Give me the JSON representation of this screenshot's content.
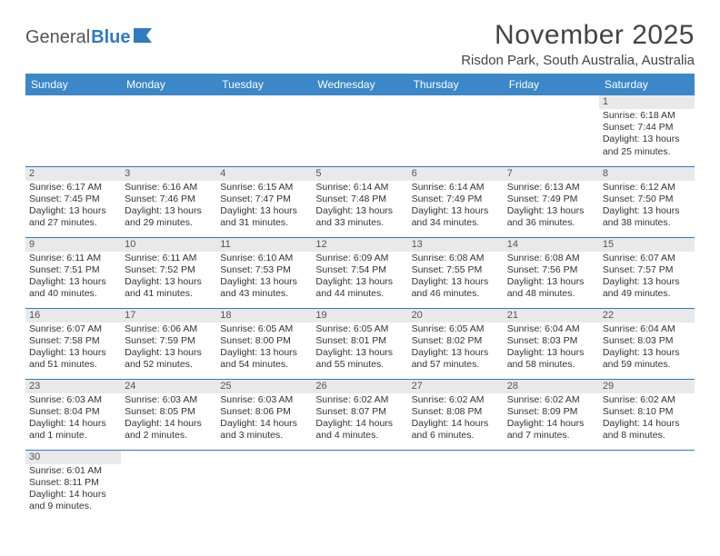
{
  "brand": {
    "part1": "General",
    "part2": "Blue"
  },
  "title": "November 2025",
  "location": "Risdon Park, South Australia, Australia",
  "colors": {
    "header_bg": "#3b87c8",
    "border": "#2f7ac0",
    "daybg": "#e9e9e9"
  },
  "dayHeaders": [
    "Sunday",
    "Monday",
    "Tuesday",
    "Wednesday",
    "Thursday",
    "Friday",
    "Saturday"
  ],
  "firstWeekday": 6,
  "days": [
    {
      "n": 1,
      "sunrise": "6:18 AM",
      "sunset": "7:44 PM",
      "daylight": "13 hours and 25 minutes."
    },
    {
      "n": 2,
      "sunrise": "6:17 AM",
      "sunset": "7:45 PM",
      "daylight": "13 hours and 27 minutes."
    },
    {
      "n": 3,
      "sunrise": "6:16 AM",
      "sunset": "7:46 PM",
      "daylight": "13 hours and 29 minutes."
    },
    {
      "n": 4,
      "sunrise": "6:15 AM",
      "sunset": "7:47 PM",
      "daylight": "13 hours and 31 minutes."
    },
    {
      "n": 5,
      "sunrise": "6:14 AM",
      "sunset": "7:48 PM",
      "daylight": "13 hours and 33 minutes."
    },
    {
      "n": 6,
      "sunrise": "6:14 AM",
      "sunset": "7:49 PM",
      "daylight": "13 hours and 34 minutes."
    },
    {
      "n": 7,
      "sunrise": "6:13 AM",
      "sunset": "7:49 PM",
      "daylight": "13 hours and 36 minutes."
    },
    {
      "n": 8,
      "sunrise": "6:12 AM",
      "sunset": "7:50 PM",
      "daylight": "13 hours and 38 minutes."
    },
    {
      "n": 9,
      "sunrise": "6:11 AM",
      "sunset": "7:51 PM",
      "daylight": "13 hours and 40 minutes."
    },
    {
      "n": 10,
      "sunrise": "6:11 AM",
      "sunset": "7:52 PM",
      "daylight": "13 hours and 41 minutes."
    },
    {
      "n": 11,
      "sunrise": "6:10 AM",
      "sunset": "7:53 PM",
      "daylight": "13 hours and 43 minutes."
    },
    {
      "n": 12,
      "sunrise": "6:09 AM",
      "sunset": "7:54 PM",
      "daylight": "13 hours and 44 minutes."
    },
    {
      "n": 13,
      "sunrise": "6:08 AM",
      "sunset": "7:55 PM",
      "daylight": "13 hours and 46 minutes."
    },
    {
      "n": 14,
      "sunrise": "6:08 AM",
      "sunset": "7:56 PM",
      "daylight": "13 hours and 48 minutes."
    },
    {
      "n": 15,
      "sunrise": "6:07 AM",
      "sunset": "7:57 PM",
      "daylight": "13 hours and 49 minutes."
    },
    {
      "n": 16,
      "sunrise": "6:07 AM",
      "sunset": "7:58 PM",
      "daylight": "13 hours and 51 minutes."
    },
    {
      "n": 17,
      "sunrise": "6:06 AM",
      "sunset": "7:59 PM",
      "daylight": "13 hours and 52 minutes."
    },
    {
      "n": 18,
      "sunrise": "6:05 AM",
      "sunset": "8:00 PM",
      "daylight": "13 hours and 54 minutes."
    },
    {
      "n": 19,
      "sunrise": "6:05 AM",
      "sunset": "8:01 PM",
      "daylight": "13 hours and 55 minutes."
    },
    {
      "n": 20,
      "sunrise": "6:05 AM",
      "sunset": "8:02 PM",
      "daylight": "13 hours and 57 minutes."
    },
    {
      "n": 21,
      "sunrise": "6:04 AM",
      "sunset": "8:03 PM",
      "daylight": "13 hours and 58 minutes."
    },
    {
      "n": 22,
      "sunrise": "6:04 AM",
      "sunset": "8:03 PM",
      "daylight": "13 hours and 59 minutes."
    },
    {
      "n": 23,
      "sunrise": "6:03 AM",
      "sunset": "8:04 PM",
      "daylight": "14 hours and 1 minute."
    },
    {
      "n": 24,
      "sunrise": "6:03 AM",
      "sunset": "8:05 PM",
      "daylight": "14 hours and 2 minutes."
    },
    {
      "n": 25,
      "sunrise": "6:03 AM",
      "sunset": "8:06 PM",
      "daylight": "14 hours and 3 minutes."
    },
    {
      "n": 26,
      "sunrise": "6:02 AM",
      "sunset": "8:07 PM",
      "daylight": "14 hours and 4 minutes."
    },
    {
      "n": 27,
      "sunrise": "6:02 AM",
      "sunset": "8:08 PM",
      "daylight": "14 hours and 6 minutes."
    },
    {
      "n": 28,
      "sunrise": "6:02 AM",
      "sunset": "8:09 PM",
      "daylight": "14 hours and 7 minutes."
    },
    {
      "n": 29,
      "sunrise": "6:02 AM",
      "sunset": "8:10 PM",
      "daylight": "14 hours and 8 minutes."
    },
    {
      "n": 30,
      "sunrise": "6:01 AM",
      "sunset": "8:11 PM",
      "daylight": "14 hours and 9 minutes."
    }
  ],
  "labels": {
    "sunrise": "Sunrise:",
    "sunset": "Sunset:",
    "daylight": "Daylight:"
  }
}
